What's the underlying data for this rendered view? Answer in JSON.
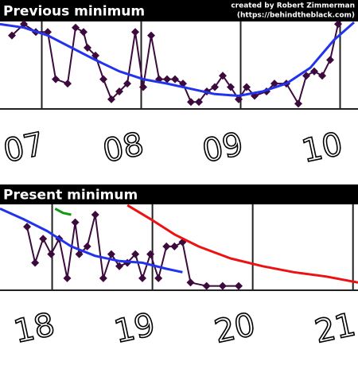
{
  "credit": [
    "created by Robert Zimmerman",
    "(https://behindtheblack.com)"
  ],
  "chart_data": [
    {
      "type": "line",
      "title": "Previous minimum",
      "xlim": [
        2006.58,
        2010.18
      ],
      "ylim": [
        0,
        100
      ],
      "grid": true,
      "xticks": [
        {
          "value": 2007,
          "label": "07"
        },
        {
          "value": 2008,
          "label": "08"
        },
        {
          "value": 2009,
          "label": "09"
        },
        {
          "value": 2010,
          "label": "10"
        }
      ],
      "series": [
        {
          "color": "#3d0a3d",
          "markers": true,
          "x": [
            2006.7,
            2006.82,
            2006.94,
            2007.06,
            2007.14,
            2007.26,
            2007.34,
            2007.42,
            2007.46,
            2007.54,
            2007.62,
            2007.7,
            2007.78,
            2007.86,
            2007.94,
            2008.02,
            2008.1,
            2008.18,
            2008.26,
            2008.34,
            2008.42,
            2008.5,
            2008.58,
            2008.66,
            2008.74,
            2008.82,
            2008.9,
            2008.98,
            2009.06,
            2009.14,
            2009.26,
            2009.34,
            2009.46,
            2009.58,
            2009.66,
            2009.74,
            2009.82,
            2009.9,
            2009.98
          ],
          "values": [
            84,
            97,
            88,
            88,
            34,
            29,
            93,
            88,
            70,
            61,
            34,
            11,
            20,
            29,
            88,
            25,
            84,
            34,
            34,
            34,
            29,
            8,
            8,
            20,
            25,
            38,
            25,
            11,
            25,
            15,
            20,
            29,
            29,
            6,
            38,
            43,
            38,
            56,
            97
          ]
        },
        {
          "color": "#2233ee",
          "markers": false,
          "x": [
            2006.58,
            2006.82,
            2007.06,
            2007.3,
            2007.54,
            2007.78,
            2008.02,
            2008.26,
            2008.5,
            2008.74,
            2008.98,
            2009.22,
            2009.46,
            2009.7,
            2009.94,
            2010.14
          ],
          "values": [
            97,
            93,
            84,
            70,
            56,
            43,
            34,
            29,
            23,
            17,
            15,
            20,
            29,
            47,
            79,
            99
          ]
        }
      ]
    },
    {
      "type": "line",
      "title": "Present minimum",
      "xlim": [
        2017.48,
        2021.05
      ],
      "ylim": [
        0,
        100
      ],
      "grid": true,
      "xticks": [
        {
          "value": 2018,
          "label": "18"
        },
        {
          "value": 2019,
          "label": "19"
        },
        {
          "value": 2020,
          "label": "20"
        },
        {
          "value": 2021,
          "label": "21"
        }
      ],
      "series": [
        {
          "color": "#3d0a3d",
          "markers": true,
          "x": [
            2017.75,
            2017.83,
            2017.91,
            2017.99,
            2018.07,
            2018.15,
            2018.23,
            2018.27,
            2018.35,
            2018.43,
            2018.51,
            2018.59,
            2018.67,
            2018.75,
            2018.83,
            2018.9,
            2018.98,
            2019.06,
            2019.14,
            2019.22,
            2019.3,
            2019.38,
            2019.54,
            2019.7,
            2019.86
          ],
          "values": [
            74,
            32,
            60,
            42,
            60,
            14,
            79,
            42,
            51,
            88,
            14,
            42,
            28,
            32,
            42,
            14,
            42,
            14,
            51,
            51,
            56,
            9,
            5,
            5,
            5
          ]
        },
        {
          "color": "#2233ee",
          "markers": false,
          "x": [
            2017.48,
            2017.71,
            2017.95,
            2018.19,
            2018.43,
            2018.67,
            2018.9,
            2019.14,
            2019.3
          ],
          "values": [
            95,
            83,
            69,
            51,
            40,
            34,
            32,
            25,
            21
          ]
        },
        {
          "color": "#ee1111",
          "markers": false,
          "x": [
            2018.75,
            2018.98,
            2019.22,
            2019.46,
            2019.78,
            2020.1,
            2020.41,
            2020.73,
            2021.05
          ],
          "values": [
            99,
            83,
            65,
            51,
            37,
            28,
            21,
            16,
            9
          ]
        },
        {
          "color": "#119911",
          "markers": false,
          "x": [
            2018.03,
            2018.11,
            2018.19
          ],
          "values": [
            95,
            90,
            88
          ]
        }
      ]
    }
  ]
}
